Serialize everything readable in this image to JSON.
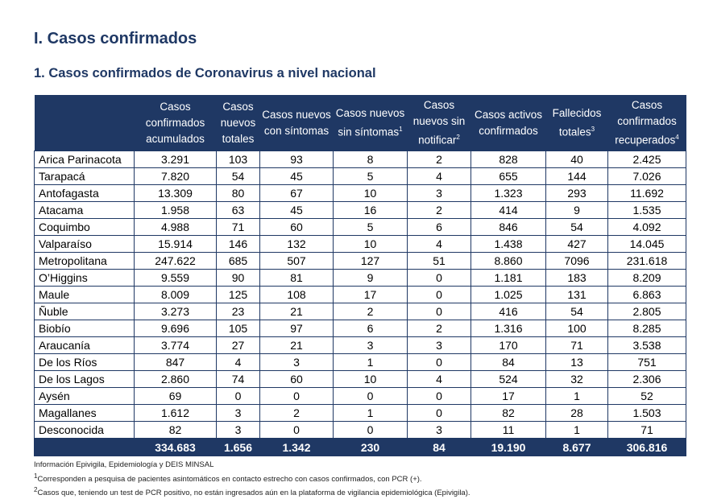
{
  "section_title": "I. Casos confirmados",
  "subsection_title": "1. Casos confirmados de Coronavirus a nivel nacional",
  "colors": {
    "header_bg": "#1f3864",
    "title": "#1f3864"
  },
  "table": {
    "headers": [
      {
        "label": "",
        "sup": ""
      },
      {
        "label": "Casos confirmados acumulados",
        "sup": ""
      },
      {
        "label": "Casos nuevos totales",
        "sup": ""
      },
      {
        "label": "Casos nuevos con síntomas",
        "sup": ""
      },
      {
        "label": "Casos nuevos sin síntomas",
        "sup": "1"
      },
      {
        "label": "Casos nuevos sin notificar",
        "sup": "2"
      },
      {
        "label": "Casos activos confirmados",
        "sup": ""
      },
      {
        "label": "Fallecidos totales",
        "sup": "3"
      },
      {
        "label": "Casos confirmados recuperados",
        "sup": "4"
      }
    ],
    "rows": [
      [
        "Arica Parinacota",
        "3.291",
        "103",
        "93",
        "8",
        "2",
        "828",
        "40",
        "2.425"
      ],
      [
        "Tarapacá",
        "7.820",
        "54",
        "45",
        "5",
        "4",
        "655",
        "144",
        "7.026"
      ],
      [
        "Antofagasta",
        "13.309",
        "80",
        "67",
        "10",
        "3",
        "1.323",
        "293",
        "11.692"
      ],
      [
        "Atacama",
        "1.958",
        "63",
        "45",
        "16",
        "2",
        "414",
        "9",
        "1.535"
      ],
      [
        "Coquimbo",
        "4.988",
        "71",
        "60",
        "5",
        "6",
        "846",
        "54",
        "4.092"
      ],
      [
        "Valparaíso",
        "15.914",
        "146",
        "132",
        "10",
        "4",
        "1.438",
        "427",
        "14.045"
      ],
      [
        "Metropolitana",
        "247.622",
        "685",
        "507",
        "127",
        "51",
        "8.860",
        "7096",
        "231.618"
      ],
      [
        "O’Higgins",
        "9.559",
        "90",
        "81",
        "9",
        "0",
        "1.181",
        "183",
        "8.209"
      ],
      [
        "Maule",
        "8.009",
        "125",
        "108",
        "17",
        "0",
        "1.025",
        "131",
        "6.863"
      ],
      [
        "Ñuble",
        "3.273",
        "23",
        "21",
        "2",
        "0",
        "416",
        "54",
        "2.805"
      ],
      [
        "Biobío",
        "9.696",
        "105",
        "97",
        "6",
        "2",
        "1.316",
        "100",
        "8.285"
      ],
      [
        "Araucanía",
        "3.774",
        "27",
        "21",
        "3",
        "3",
        "170",
        "71",
        "3.538"
      ],
      [
        "De los Ríos",
        "847",
        "4",
        "3",
        "1",
        "0",
        "84",
        "13",
        "751"
      ],
      [
        "De los Lagos",
        "2.860",
        "74",
        "60",
        "10",
        "4",
        "524",
        "32",
        "2.306"
      ],
      [
        "Aysén",
        "69",
        "0",
        "0",
        "0",
        "0",
        "17",
        "1",
        "52"
      ],
      [
        "Magallanes",
        "1.612",
        "3",
        "2",
        "1",
        "0",
        "82",
        "28",
        "1.503"
      ],
      [
        "Desconocida",
        "82",
        "3",
        "0",
        "0",
        "3",
        "11",
        "1",
        "71"
      ]
    ],
    "total": [
      "",
      "334.683",
      "1.656",
      "1.342",
      "230",
      "84",
      "19.190",
      "8.677",
      "306.816"
    ]
  },
  "notes": [
    {
      "sup": "",
      "text": "Información Epivigila, Epidemiología y DEIS MINSAL"
    },
    {
      "sup": "1",
      "text": "Corresponden a pesquisa de pacientes asintomáticos en contacto estrecho con casos confirmados, con PCR (+)."
    },
    {
      "sup": "2",
      "text": "Casos que, teniendo un test de PCR positivo, no están ingresados aún en la plataforma de vigilancia epidemiológica (Epivigila)."
    }
  ]
}
